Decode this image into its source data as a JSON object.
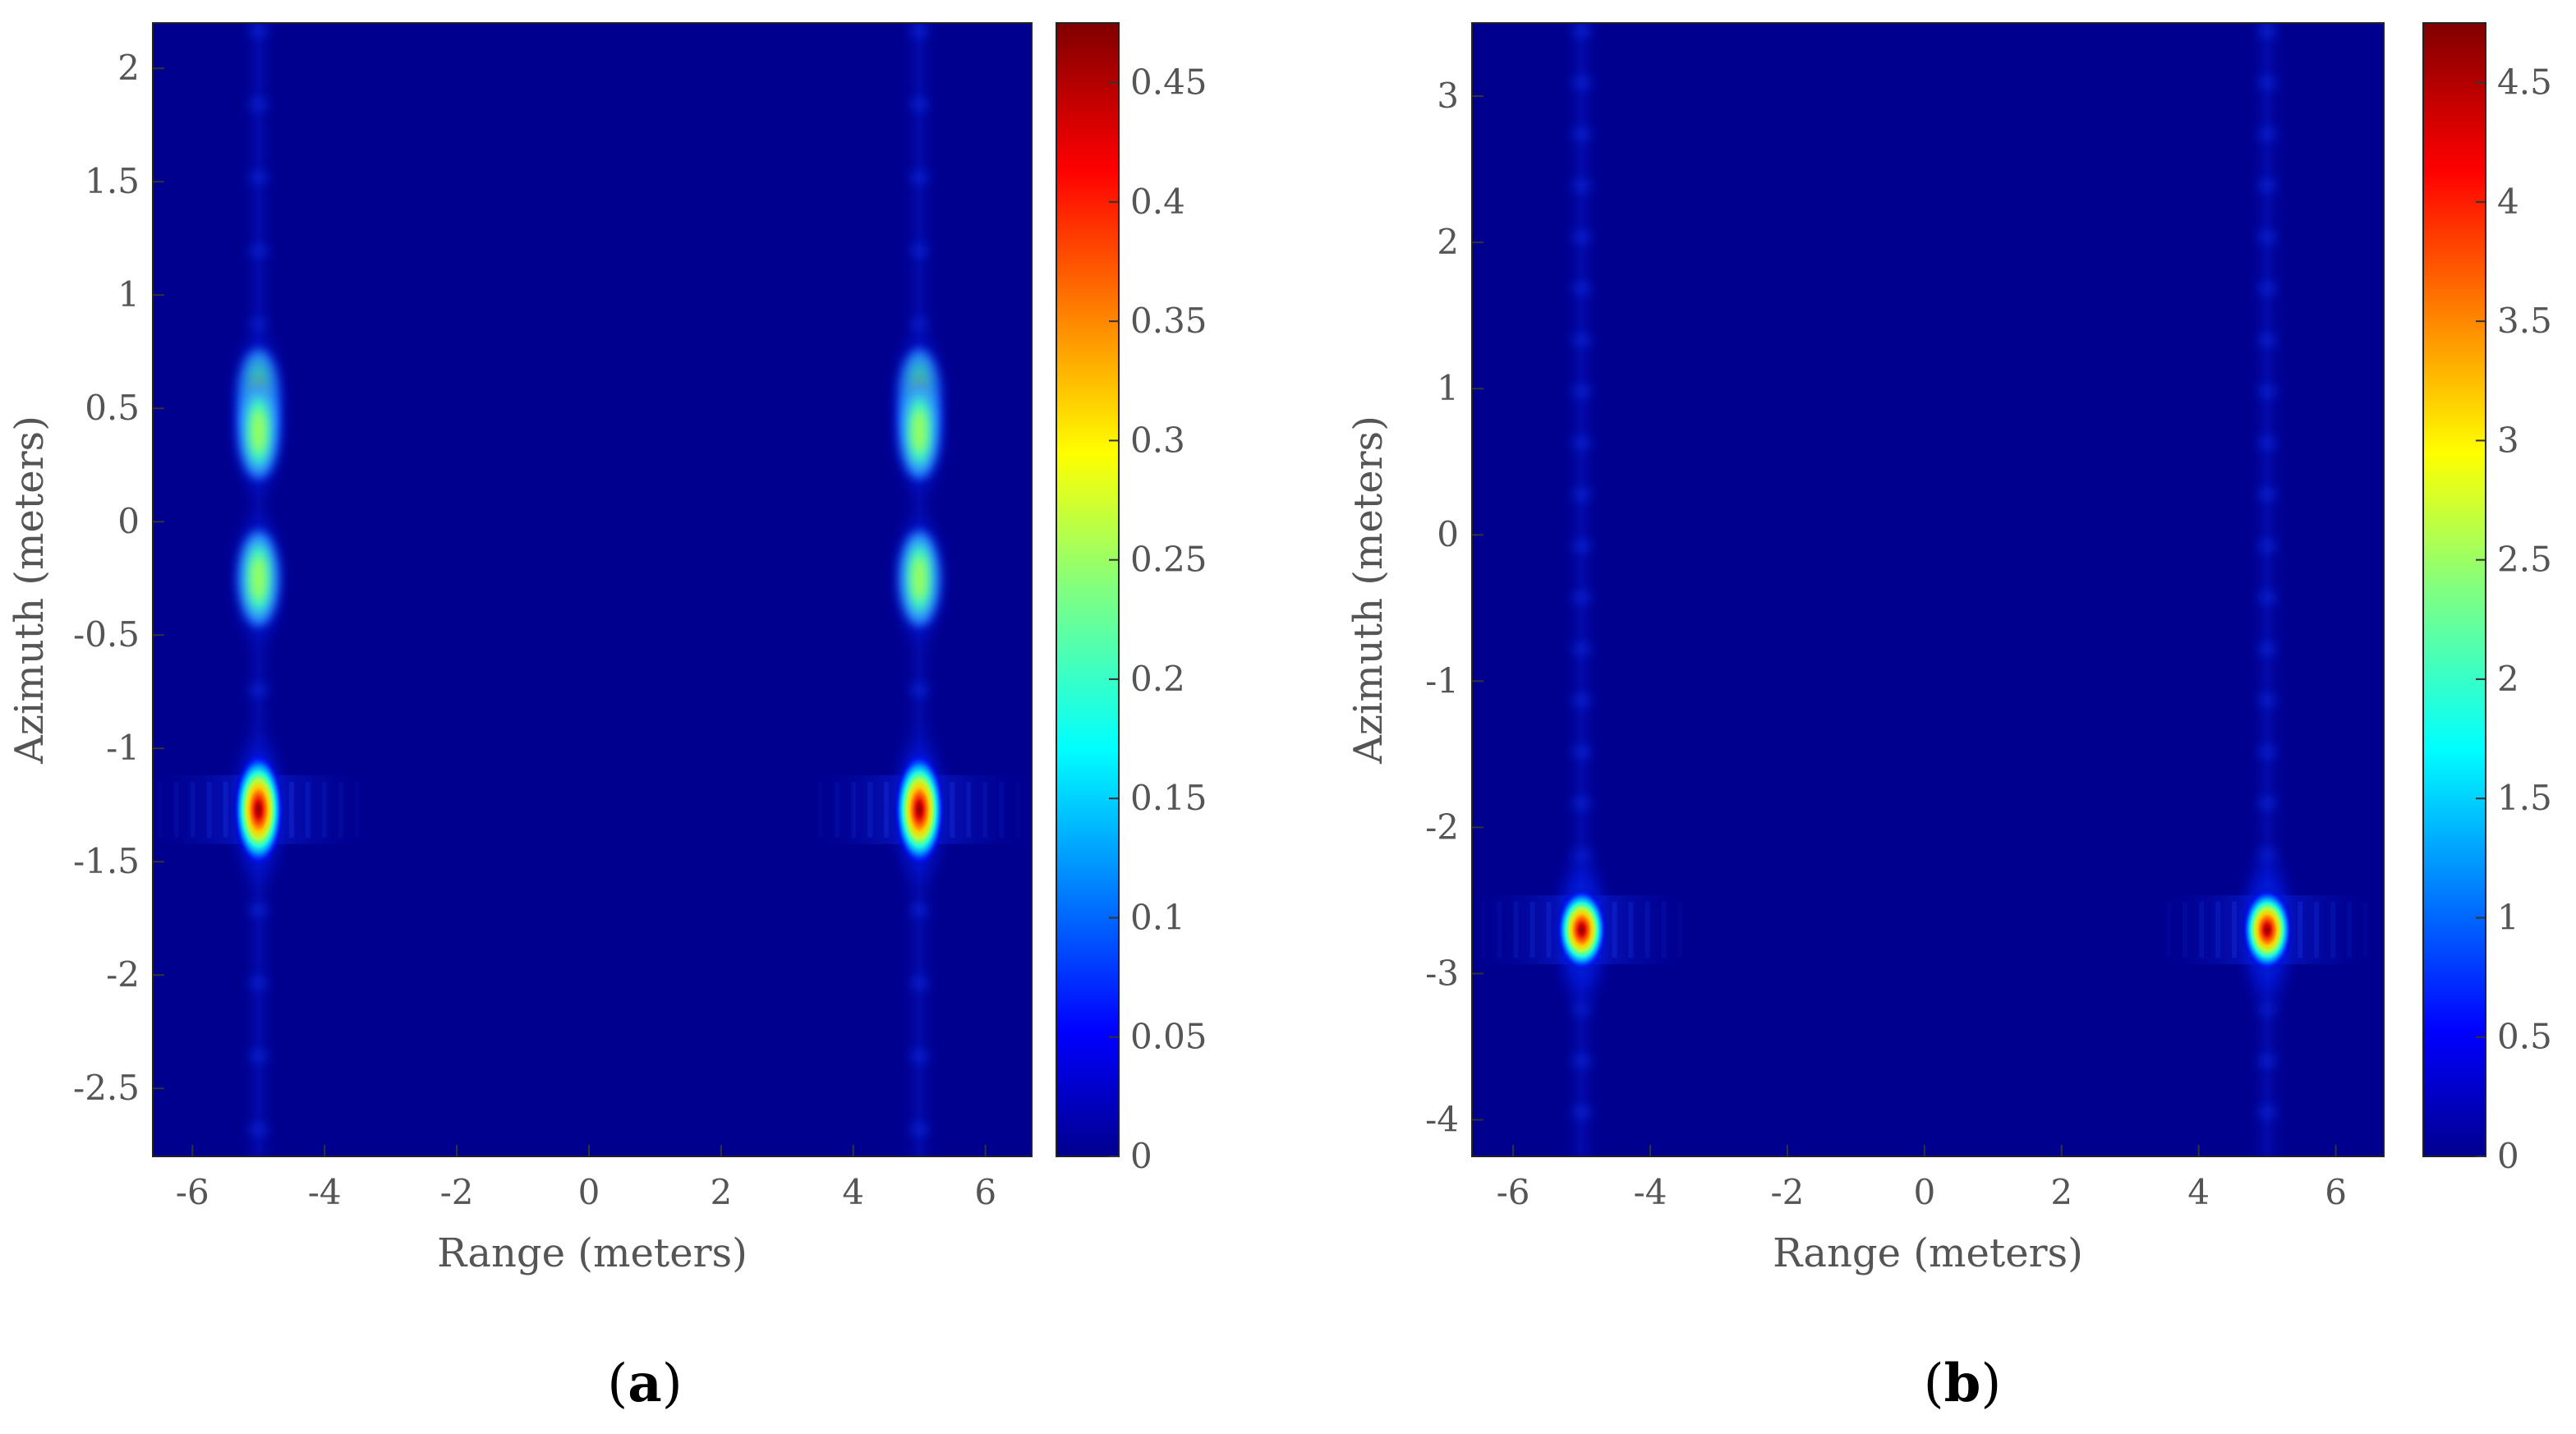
{
  "chart_data": [
    {
      "type": "heatmap",
      "panel_label": "a",
      "xlabel": "Range (meters)",
      "ylabel": "Azimuth (meters)",
      "xlim": [
        -6.6,
        6.7
      ],
      "ylim": [
        -2.8,
        2.2
      ],
      "xticks": [
        -6,
        -4,
        -2,
        0,
        2,
        4,
        6
      ],
      "yticks": [
        -2.5,
        -2,
        -1.5,
        -1,
        -0.5,
        0,
        0.5,
        1,
        1.5,
        2
      ],
      "colorbar": {
        "min": 0,
        "max": 0.475,
        "ticks": [
          0,
          0.05,
          0.1,
          0.15,
          0.2,
          0.25,
          0.3,
          0.35,
          0.4,
          0.45
        ]
      },
      "colormap": "jet",
      "background_color": "#00008f",
      "grid": false,
      "peaks": [
        {
          "x": -5,
          "y": -1.27,
          "value": 0.47
        },
        {
          "x": 5,
          "y": -1.27,
          "value": 0.47
        },
        {
          "x": -5,
          "y": 0.55,
          "value": 0.25
        },
        {
          "x": 5,
          "y": 0.55,
          "value": 0.25
        },
        {
          "x": -5,
          "y": 0.4,
          "value": 0.22
        },
        {
          "x": 5,
          "y": 0.4,
          "value": 0.22
        },
        {
          "x": -5,
          "y": -0.25,
          "value": 0.24
        },
        {
          "x": 5,
          "y": -0.25,
          "value": 0.24
        }
      ]
    },
    {
      "type": "heatmap",
      "panel_label": "b",
      "xlabel": "Range (meters)",
      "ylabel": "Azimuth (meters)",
      "xlim": [
        -6.6,
        6.7
      ],
      "ylim": [
        -4.25,
        3.5
      ],
      "xticks": [
        -6,
        -4,
        -2,
        0,
        2,
        4,
        6
      ],
      "yticks": [
        -4,
        -3,
        -2,
        -1,
        0,
        1,
        2,
        3
      ],
      "colorbar": {
        "min": 0,
        "max": 4.75,
        "ticks": [
          0,
          0.5,
          1,
          1.5,
          2,
          2.5,
          3,
          3.5,
          4,
          4.5
        ]
      },
      "colormap": "jet",
      "background_color": "#00008f",
      "grid": false,
      "peaks": [
        {
          "x": -5,
          "y": -2.7,
          "value": 4.6
        },
        {
          "x": 5,
          "y": -2.7,
          "value": 4.6
        }
      ]
    }
  ]
}
